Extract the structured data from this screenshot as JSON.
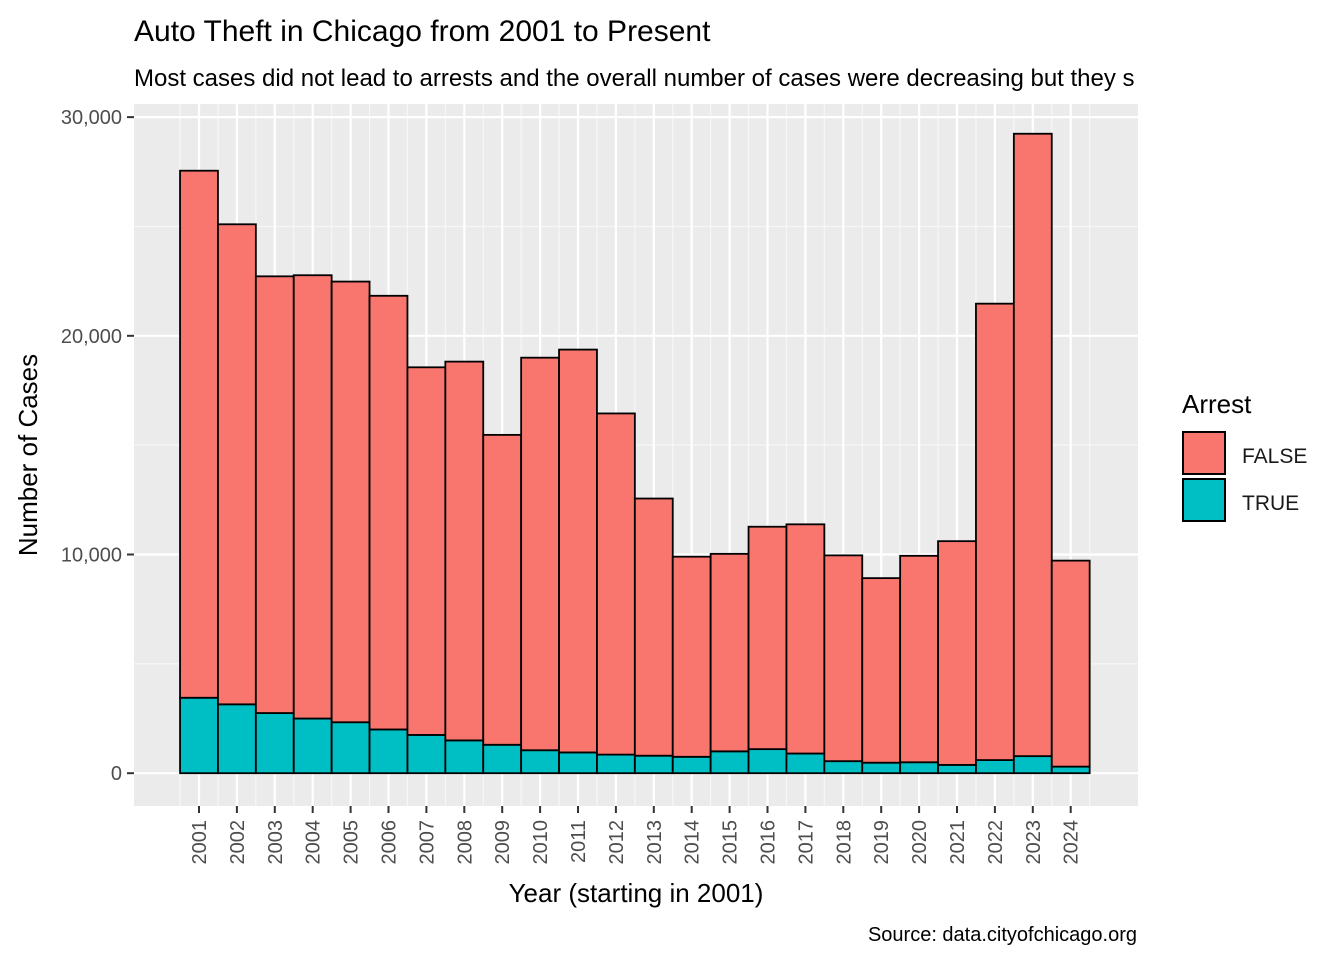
{
  "chart_data": {
    "type": "bar",
    "stacked": true,
    "title": "Auto Theft in Chicago from 2001 to Present",
    "subtitle": "Most cases did not lead to arrests and the overall number of cases were decreasing but they s",
    "xlabel": "Year (starting in 2001)",
    "ylabel": "Number of Cases",
    "caption": "Source: data.cityofchicago.org",
    "ylim": [
      -1500,
      30600
    ],
    "yticks": [
      0,
      10000,
      20000,
      30000
    ],
    "ytick_labels": [
      "0",
      "10,000",
      "20,000",
      "30,000"
    ],
    "grid": true,
    "legend": {
      "title": "Arrest",
      "position": "right"
    },
    "categories": [
      "2001",
      "2002",
      "2003",
      "2004",
      "2005",
      "2006",
      "2007",
      "2008",
      "2009",
      "2010",
      "2011",
      "2012",
      "2013",
      "2014",
      "2015",
      "2016",
      "2017",
      "2018",
      "2019",
      "2020",
      "2021",
      "2022",
      "2023",
      "2024"
    ],
    "series": [
      {
        "name": "TRUE",
        "color": "#00BFC4",
        "values": [
          3450,
          3150,
          2750,
          2500,
          2330,
          2000,
          1750,
          1500,
          1300,
          1050,
          950,
          850,
          800,
          750,
          1000,
          1100,
          900,
          550,
          480,
          500,
          380,
          600,
          780,
          300
        ]
      },
      {
        "name": "FALSE",
        "color": "#F8766D",
        "values": [
          24100,
          21950,
          19970,
          20270,
          20150,
          19830,
          16810,
          17320,
          14170,
          17950,
          18420,
          15600,
          11760,
          9150,
          9030,
          10170,
          10480,
          9410,
          8440,
          9440,
          10230,
          20870,
          28460,
          9420
        ]
      }
    ]
  }
}
